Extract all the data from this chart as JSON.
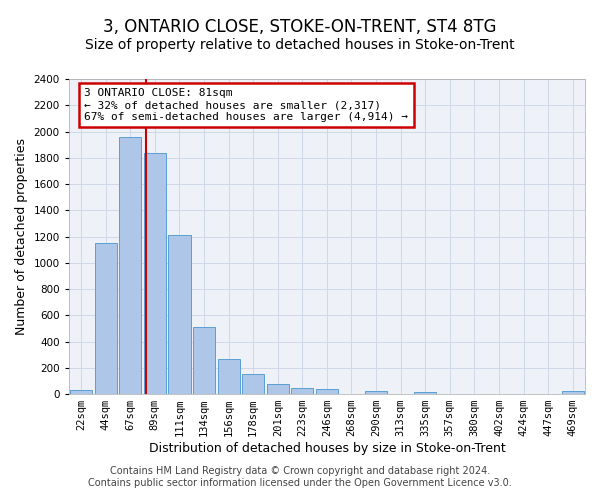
{
  "title": "3, ONTARIO CLOSE, STOKE-ON-TRENT, ST4 8TG",
  "subtitle": "Size of property relative to detached houses in Stoke-on-Trent",
  "xlabel": "Distribution of detached houses by size in Stoke-on-Trent",
  "ylabel": "Number of detached properties",
  "categories": [
    "22sqm",
    "44sqm",
    "67sqm",
    "89sqm",
    "111sqm",
    "134sqm",
    "156sqm",
    "178sqm",
    "201sqm",
    "223sqm",
    "246sqm",
    "268sqm",
    "290sqm",
    "313sqm",
    "335sqm",
    "357sqm",
    "380sqm",
    "402sqm",
    "424sqm",
    "447sqm",
    "469sqm"
  ],
  "values": [
    30,
    1150,
    1960,
    1840,
    1210,
    510,
    265,
    155,
    80,
    45,
    40,
    0,
    25,
    0,
    15,
    0,
    0,
    0,
    0,
    0,
    20
  ],
  "bar_color": "#aec6e8",
  "bar_edge_color": "#5a9fd4",
  "grid_color": "#d0d8e8",
  "background_color": "#eef2f8",
  "marker_label": "3 ONTARIO CLOSE: 81sqm",
  "annotation_line1": "← 32% of detached houses are smaller (2,317)",
  "annotation_line2": "67% of semi-detached houses are larger (4,914) →",
  "annotation_box_color": "#ffffff",
  "annotation_box_edge": "#cc0000",
  "marker_line_color": "#cc0000",
  "ylim": [
    0,
    2400
  ],
  "yticks": [
    0,
    200,
    400,
    600,
    800,
    1000,
    1200,
    1400,
    1600,
    1800,
    2000,
    2200,
    2400
  ],
  "footer_line1": "Contains HM Land Registry data © Crown copyright and database right 2024.",
  "footer_line2": "Contains public sector information licensed under the Open Government Licence v3.0.",
  "title_fontsize": 12,
  "subtitle_fontsize": 10,
  "axis_label_fontsize": 9,
  "tick_fontsize": 7.5,
  "footer_fontsize": 7,
  "marker_bin_index": 2,
  "marker_bin_low": 67,
  "marker_bin_high": 89,
  "marker_value": 81
}
